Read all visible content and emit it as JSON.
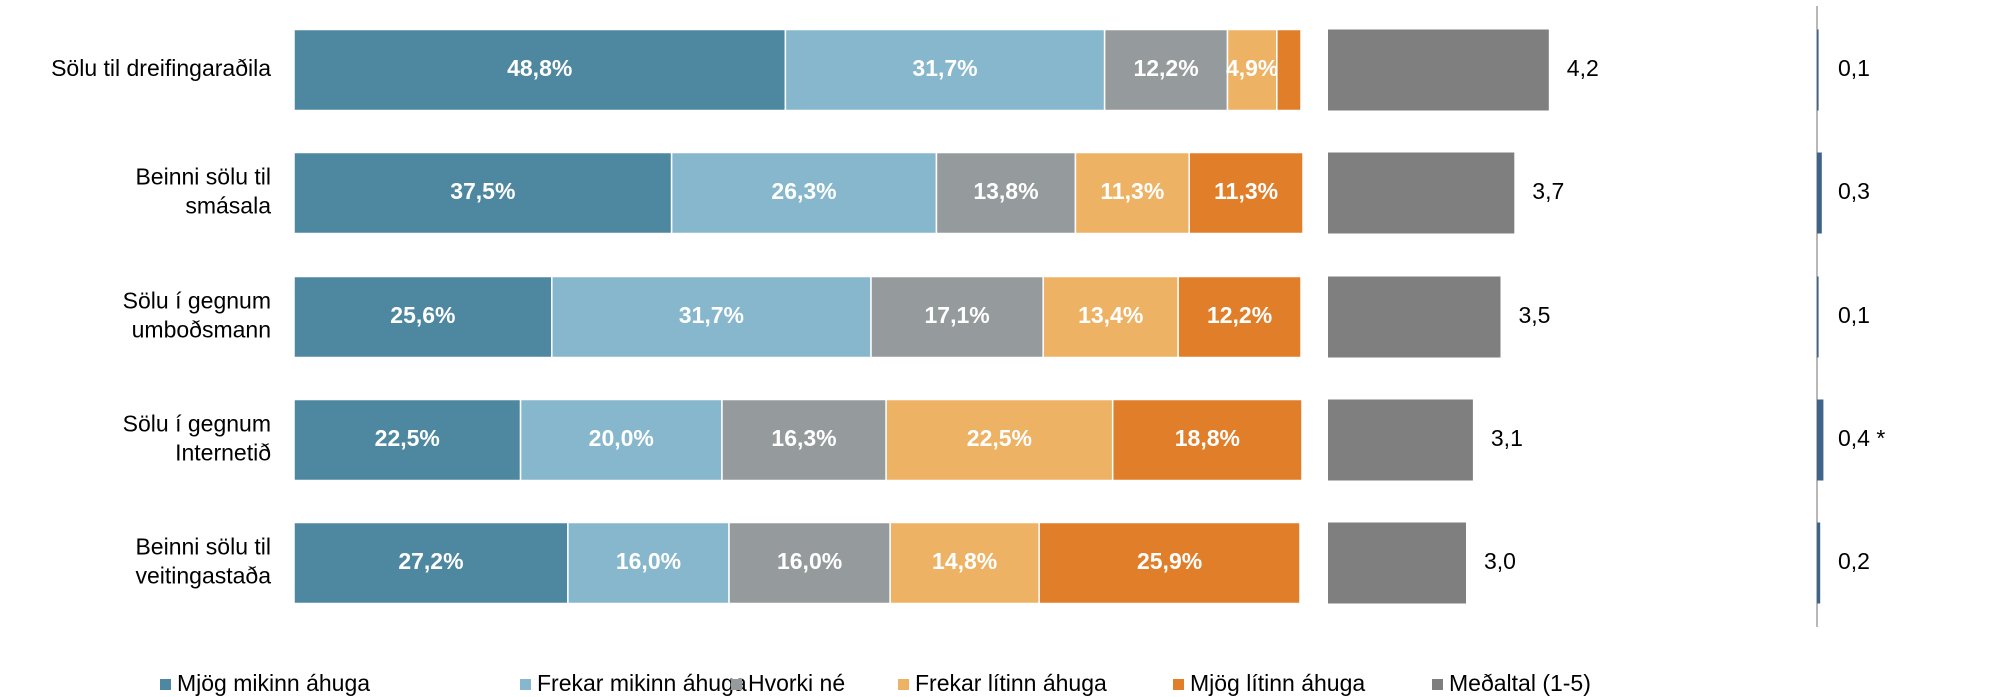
{
  "chart_data": [
    {
      "type": "bar",
      "orientation": "horizontal",
      "stacked": true,
      "categories": [
        [
          "Sölu til dreifingaraðila"
        ],
        [
          "Beinni sölu til",
          "smásala"
        ],
        [
          "Sölu í gegnum",
          "umboðsmann"
        ],
        [
          "Sölu í gegnum",
          "Internetið"
        ],
        [
          "Beinni sölu til",
          "veitingastaða"
        ]
      ],
      "xlim": [
        0,
        100
      ],
      "series": [
        {
          "name": "Mjög mikinn áhuga",
          "color": "#4e87a0",
          "values": [
            48.8,
            37.5,
            25.6,
            22.5,
            27.2
          ],
          "value_labels": [
            "48,8%",
            "37,5%",
            "25,6%",
            "22,5%",
            "27,2%"
          ]
        },
        {
          "name": "Frekar mikinn áhuga",
          "color": "#86b7cc",
          "values": [
            31.7,
            26.3,
            31.7,
            20.0,
            16.0
          ],
          "value_labels": [
            "31,7%",
            "26,3%",
            "31,7%",
            "20,0%",
            "16,0%"
          ]
        },
        {
          "name": "Hvorki né",
          "color": "#959a9c",
          "values": [
            12.2,
            13.8,
            17.1,
            16.3,
            16.0
          ],
          "value_labels": [
            "12,2%",
            "13,8%",
            "17,1%",
            "16,3%",
            "16,0%"
          ]
        },
        {
          "name": "Frekar lítinn áhuga",
          "color": "#edb264",
          "values": [
            4.9,
            11.3,
            13.4,
            22.5,
            14.8
          ],
          "value_labels": [
            "4,9%",
            "11,3%",
            "13,4%",
            "22,5%",
            "14,8%"
          ]
        },
        {
          "name": "Mjög lítinn áhuga",
          "color": "#e17e2a",
          "values": [
            2.4,
            11.3,
            12.2,
            18.8,
            25.9
          ],
          "value_labels": [
            null,
            "11,3%",
            "12,2%",
            "18,8%",
            "25,9%"
          ]
        }
      ]
    },
    {
      "type": "bar",
      "orientation": "horizontal",
      "xlim": [
        1,
        5
      ],
      "series": [
        {
          "name": "Meðaltal (1-5)",
          "color": "#7f7f7f",
          "values": [
            4.2,
            3.7,
            3.5,
            3.1,
            3.0
          ],
          "value_labels": [
            "4,2",
            "3,7",
            "3,5",
            "3,1",
            "3,0"
          ]
        }
      ]
    },
    {
      "type": "bar",
      "orientation": "horizontal",
      "xlim": [
        0,
        10
      ],
      "color": "#3f6489",
      "values": [
        0.1,
        0.3,
        0.1,
        0.4,
        0.2
      ],
      "value_labels": [
        "0,1",
        "0,3",
        "0,1",
        "0,4 *",
        "0,2"
      ]
    }
  ]
}
